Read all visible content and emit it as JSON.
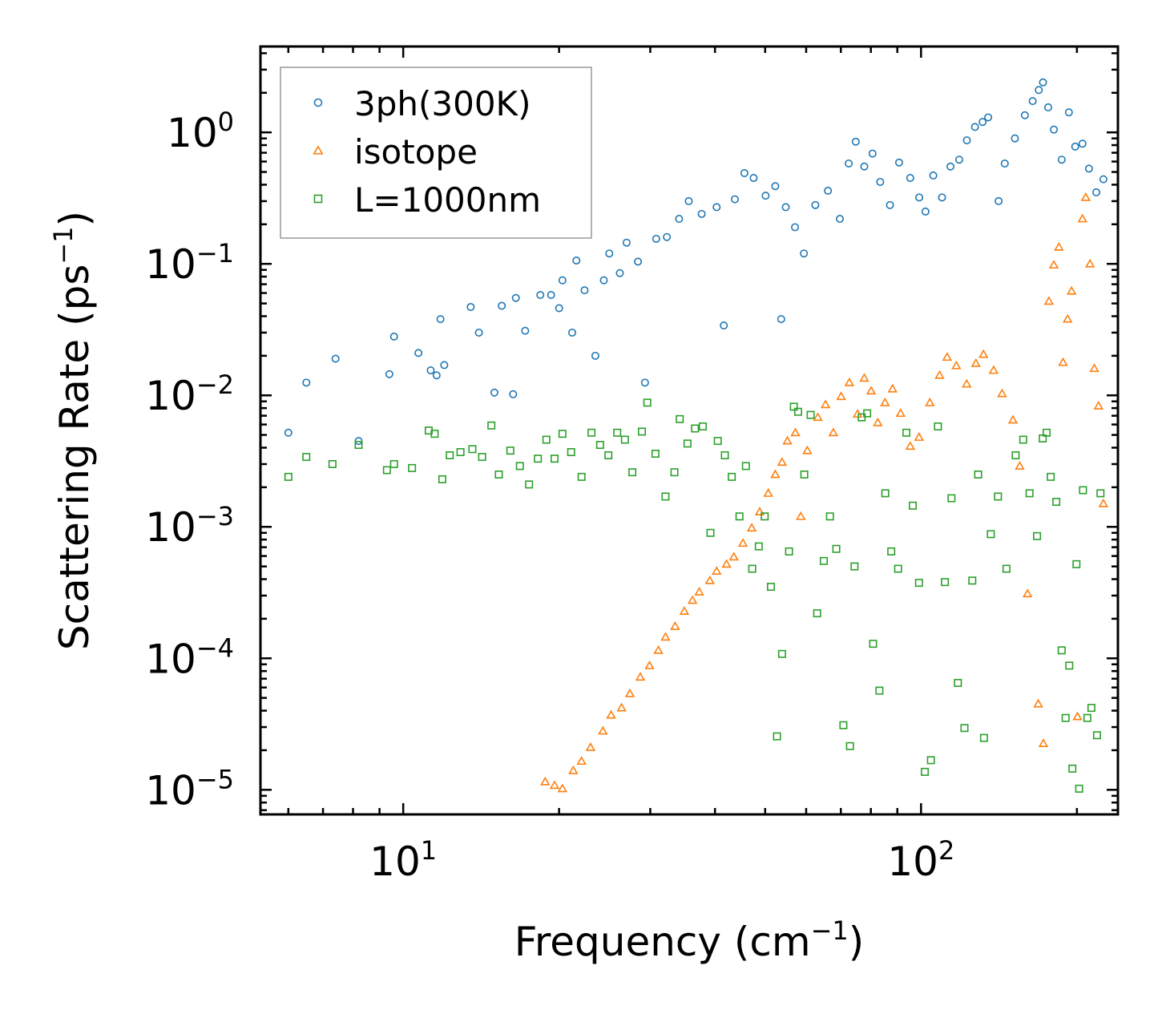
{
  "chart_data": {
    "type": "scatter",
    "title": "",
    "xlabel": "Frequency (cm",
    "xlabel_sup": "−1",
    "xlabel_suffix": ")",
    "ylabel": "Scattering Rate (ps",
    "ylabel_sup": "−1",
    "ylabel_suffix": ")",
    "xscale": "log",
    "yscale": "log",
    "xlim": [
      5.3,
      240
    ],
    "ylim": [
      6.5e-06,
      4.5
    ],
    "x_ticks": [
      {
        "value": 10,
        "base": "10",
        "exp": "1"
      },
      {
        "value": 100,
        "base": "10",
        "exp": "2"
      }
    ],
    "y_ticks": [
      {
        "value": 1,
        "base": "10",
        "exp": "0"
      },
      {
        "value": 0.1,
        "base": "10",
        "exp": "−1"
      },
      {
        "value": 0.01,
        "base": "10",
        "exp": "−2"
      },
      {
        "value": 0.001,
        "base": "10",
        "exp": "−3"
      },
      {
        "value": 0.0001,
        "base": "10",
        "exp": "−4"
      },
      {
        "value": 1e-05,
        "base": "10",
        "exp": "−5"
      }
    ],
    "legend_position": "top-left",
    "series": [
      {
        "name": "3ph(300K)",
        "color": "#1f77b4",
        "marker": "circle",
        "points": [
          [
            6,
            0.0052
          ],
          [
            6.5,
            0.0125
          ],
          [
            7.4,
            0.019
          ],
          [
            8.2,
            0.0045
          ],
          [
            9.4,
            0.0145
          ],
          [
            9.6,
            0.028
          ],
          [
            10.7,
            0.021
          ],
          [
            11.3,
            0.0155
          ],
          [
            11.6,
            0.0142
          ],
          [
            11.8,
            0.038
          ],
          [
            12.0,
            0.017
          ],
          [
            13.5,
            0.047
          ],
          [
            14.0,
            0.03
          ],
          [
            15.0,
            0.0105
          ],
          [
            15.5,
            0.048
          ],
          [
            16.3,
            0.0102
          ],
          [
            16.5,
            0.055
          ],
          [
            17.2,
            0.031
          ],
          [
            18.4,
            0.058
          ],
          [
            19.3,
            0.058
          ],
          [
            20.0,
            0.046
          ],
          [
            21.2,
            0.03
          ],
          [
            20.3,
            0.075
          ],
          [
            21.6,
            0.106
          ],
          [
            22.4,
            0.063
          ],
          [
            23.5,
            0.02
          ],
          [
            24.4,
            0.075
          ],
          [
            25.0,
            0.12
          ],
          [
            26.2,
            0.085
          ],
          [
            27.0,
            0.145
          ],
          [
            28.4,
            0.104
          ],
          [
            29.3,
            0.0125
          ],
          [
            30.8,
            0.155
          ],
          [
            32.3,
            0.16
          ],
          [
            34.1,
            0.22
          ],
          [
            35.6,
            0.3
          ],
          [
            37.7,
            0.24
          ],
          [
            40.3,
            0.27
          ],
          [
            41.6,
            0.034
          ],
          [
            43.7,
            0.31
          ],
          [
            45.6,
            0.49
          ],
          [
            47.5,
            0.45
          ],
          [
            50.1,
            0.33
          ],
          [
            52.3,
            0.39
          ],
          [
            53.7,
            0.038
          ],
          [
            54.8,
            0.27
          ],
          [
            57.1,
            0.19
          ],
          [
            59.4,
            0.12
          ],
          [
            62.5,
            0.28
          ],
          [
            66.1,
            0.36
          ],
          [
            69.7,
            0.22
          ],
          [
            72.5,
            0.58
          ],
          [
            74.8,
            0.85
          ],
          [
            77.7,
            0.55
          ],
          [
            80.6,
            0.69
          ],
          [
            83.4,
            0.42
          ],
          [
            87.1,
            0.28
          ],
          [
            90.7,
            0.59
          ],
          [
            95.3,
            0.45
          ],
          [
            99.2,
            0.32
          ],
          [
            102.0,
            0.25
          ],
          [
            105.6,
            0.47
          ],
          [
            109.8,
            0.32
          ],
          [
            114.0,
            0.55
          ],
          [
            118.5,
            0.62
          ],
          [
            122.6,
            0.87
          ],
          [
            127.1,
            1.1
          ],
          [
            131.5,
            1.2
          ],
          [
            134.8,
            1.3
          ],
          [
            141.2,
            0.3
          ],
          [
            145.1,
            0.58
          ],
          [
            151.8,
            0.9
          ],
          [
            158.7,
            1.35
          ],
          [
            164.3,
            1.73
          ],
          [
            168.8,
            2.1
          ],
          [
            172.0,
            2.4
          ],
          [
            176.0,
            1.55
          ],
          [
            180.5,
            1.05
          ],
          [
            186.9,
            0.62
          ],
          [
            193.0,
            1.42
          ],
          [
            198.5,
            0.78
          ],
          [
            205.0,
            0.82
          ],
          [
            211.0,
            0.53
          ],
          [
            218.0,
            0.35
          ],
          [
            225.0,
            0.44
          ]
        ]
      },
      {
        "name": "isotope",
        "color": "#ff7f0e",
        "marker": "triangle",
        "points": [
          [
            18.8,
            1.15e-05
          ],
          [
            19.6,
            1.08e-05
          ],
          [
            20.3,
            1.02e-05
          ],
          [
            21.3,
            1.4e-05
          ],
          [
            22.1,
            1.65e-05
          ],
          [
            23.0,
            2.1e-05
          ],
          [
            24.3,
            2.8e-05
          ],
          [
            25.2,
            3.7e-05
          ],
          [
            26.4,
            4.2e-05
          ],
          [
            27.4,
            5.4e-05
          ],
          [
            28.7,
            7.2e-05
          ],
          [
            29.9,
            8.8e-05
          ],
          [
            31.1,
            0.000115
          ],
          [
            32.1,
            0.000145
          ],
          [
            33.5,
            0.000175
          ],
          [
            34.9,
            0.000228
          ],
          [
            36.2,
            0.000276
          ],
          [
            37.3,
            0.00032
          ],
          [
            39.1,
            0.00039
          ],
          [
            40.3,
            0.00046
          ],
          [
            42.1,
            0.00052
          ],
          [
            43.5,
            0.00059
          ],
          [
            45.3,
            0.00075
          ],
          [
            47.1,
            0.00098
          ],
          [
            48.8,
            0.0013
          ],
          [
            50.7,
            0.0018
          ],
          [
            52.3,
            0.0025
          ],
          [
            53.9,
            0.0031
          ],
          [
            55.2,
            0.0045
          ],
          [
            57.2,
            0.0052
          ],
          [
            58.6,
            0.0012
          ],
          [
            60.3,
            0.0038
          ],
          [
            63.2,
            0.0068
          ],
          [
            65.4,
            0.0085
          ],
          [
            67.7,
            0.0052
          ],
          [
            70.1,
            0.0098
          ],
          [
            72.7,
            0.0125
          ],
          [
            75.4,
            0.0072
          ],
          [
            77.7,
            0.0135
          ],
          [
            80.1,
            0.0108
          ],
          [
            82.5,
            0.0062
          ],
          [
            85.2,
            0.0088
          ],
          [
            88.1,
            0.0112
          ],
          [
            91.3,
            0.0073
          ],
          [
            95.3,
            0.0041
          ],
          [
            99.1,
            0.0048
          ],
          [
            104.0,
            0.0088
          ],
          [
            108.6,
            0.0142
          ],
          [
            112.3,
            0.0195
          ],
          [
            117.0,
            0.0168
          ],
          [
            122.5,
            0.0122
          ],
          [
            127.6,
            0.0175
          ],
          [
            132.0,
            0.0205
          ],
          [
            138.1,
            0.0155
          ],
          [
            143.4,
            0.0103
          ],
          [
            150.5,
            0.0065
          ],
          [
            155.1,
            0.0029
          ],
          [
            160.6,
            0.00031
          ],
          [
            168.4,
            4.5e-05
          ],
          [
            172.3,
            2.25e-05
          ],
          [
            176.6,
            0.052
          ],
          [
            180.5,
            0.098
          ],
          [
            184.6,
            0.134
          ],
          [
            188.0,
            0.0178
          ],
          [
            191.9,
            0.038
          ],
          [
            195.3,
            0.062
          ],
          [
            200.5,
            3.6e-05
          ],
          [
            205.0,
            0.22
          ],
          [
            208.0,
            0.32
          ],
          [
            212.0,
            0.1
          ],
          [
            216.1,
            0.016
          ],
          [
            220.2,
            0.0083
          ],
          [
            225.0,
            0.0015
          ]
        ]
      },
      {
        "name": "L=1000nm",
        "color": "#2ca02c",
        "marker": "square",
        "points": [
          [
            6,
            0.0024
          ],
          [
            6.5,
            0.0034
          ],
          [
            7.3,
            0.003
          ],
          [
            8.2,
            0.0042
          ],
          [
            9.3,
            0.0027
          ],
          [
            9.6,
            0.003
          ],
          [
            10.4,
            0.0028
          ],
          [
            11.2,
            0.0054
          ],
          [
            11.5,
            0.0051
          ],
          [
            11.9,
            0.0023
          ],
          [
            12.3,
            0.0035
          ],
          [
            12.9,
            0.0037
          ],
          [
            13.6,
            0.0039
          ],
          [
            14.2,
            0.0034
          ],
          [
            14.8,
            0.0059
          ],
          [
            15.3,
            0.0025
          ],
          [
            16.1,
            0.0038
          ],
          [
            16.8,
            0.0029
          ],
          [
            17.5,
            0.0021
          ],
          [
            18.2,
            0.0033
          ],
          [
            18.9,
            0.0046
          ],
          [
            19.6,
            0.0033
          ],
          [
            20.3,
            0.0051
          ],
          [
            21.1,
            0.0037
          ],
          [
            22.1,
            0.0024
          ],
          [
            23.1,
            0.0052
          ],
          [
            24.0,
            0.0042
          ],
          [
            24.9,
            0.0035
          ],
          [
            25.9,
            0.0052
          ],
          [
            26.8,
            0.0046
          ],
          [
            27.7,
            0.0026
          ],
          [
            28.9,
            0.0053
          ],
          [
            29.6,
            0.0088
          ],
          [
            30.7,
            0.0036
          ],
          [
            32.1,
            0.0017
          ],
          [
            33.4,
            0.0026
          ],
          [
            34.2,
            0.0066
          ],
          [
            35.4,
            0.0043
          ],
          [
            36.6,
            0.0056
          ],
          [
            37.9,
            0.0058
          ],
          [
            39.2,
            0.0009
          ],
          [
            40.5,
            0.0045
          ],
          [
            41.8,
            0.0035
          ],
          [
            43.1,
            0.0024
          ],
          [
            44.6,
            0.0012
          ],
          [
            45.9,
            0.0029
          ],
          [
            47.2,
            0.00048
          ],
          [
            48.6,
            0.00071
          ],
          [
            49.9,
            0.0012
          ],
          [
            51.3,
            0.00035
          ],
          [
            52.7,
            2.55e-05
          ],
          [
            53.9,
            0.000108
          ],
          [
            55.6,
            0.00065
          ],
          [
            56.8,
            0.0082
          ],
          [
            57.9,
            0.0075
          ],
          [
            59.5,
            0.0025
          ],
          [
            61.2,
            0.0071
          ],
          [
            63.0,
            0.00022
          ],
          [
            64.9,
            0.00055
          ],
          [
            66.7,
            0.0012
          ],
          [
            68.6,
            0.00068
          ],
          [
            70.8,
            3.1e-05
          ],
          [
            72.9,
            2.15e-05
          ],
          [
            74.4,
            0.0005
          ],
          [
            76.8,
            0.0068
          ],
          [
            78.7,
            0.0073
          ],
          [
            80.8,
            0.000129
          ],
          [
            83.1,
            5.68e-05
          ],
          [
            85.3,
            0.0018
          ],
          [
            87.6,
            0.00065
          ],
          [
            90.3,
            0.00048
          ],
          [
            93.7,
            0.0052
          ],
          [
            96.4,
            0.00145
          ],
          [
            99.1,
            0.000375
          ],
          [
            101.7,
            1.37e-05
          ],
          [
            104.5,
            1.68e-05
          ],
          [
            107.8,
            0.0058
          ],
          [
            111.2,
            0.00038
          ],
          [
            114.5,
            0.00165
          ],
          [
            117.8,
            6.5e-05
          ],
          [
            121.3,
            2.95e-05
          ],
          [
            125.6,
            0.00039
          ],
          [
            128.9,
            0.0025
          ],
          [
            132.3,
            2.48e-05
          ],
          [
            136.4,
            0.00088
          ],
          [
            140.8,
            0.0017
          ],
          [
            146.2,
            0.00048
          ],
          [
            152.3,
            0.0035
          ],
          [
            157.5,
            0.0046
          ],
          [
            162.0,
            0.0018
          ],
          [
            167.5,
            0.00085
          ],
          [
            171.8,
            0.0047
          ],
          [
            174.8,
            0.0052
          ],
          [
            178.0,
            0.0024
          ],
          [
            182.5,
            0.00155
          ],
          [
            186.9,
            0.000115
          ],
          [
            190.2,
            3.52e-05
          ],
          [
            193.3,
            8.8e-05
          ],
          [
            196.0,
            1.45e-05
          ],
          [
            199.6,
            0.00052
          ],
          [
            202.0,
            1.02e-05
          ],
          [
            205.5,
            0.0019
          ],
          [
            209.5,
            3.52e-05
          ],
          [
            213.3,
            4.2e-05
          ],
          [
            218.7,
            2.6e-05
          ],
          [
            222.1,
            0.0018
          ]
        ]
      }
    ]
  }
}
